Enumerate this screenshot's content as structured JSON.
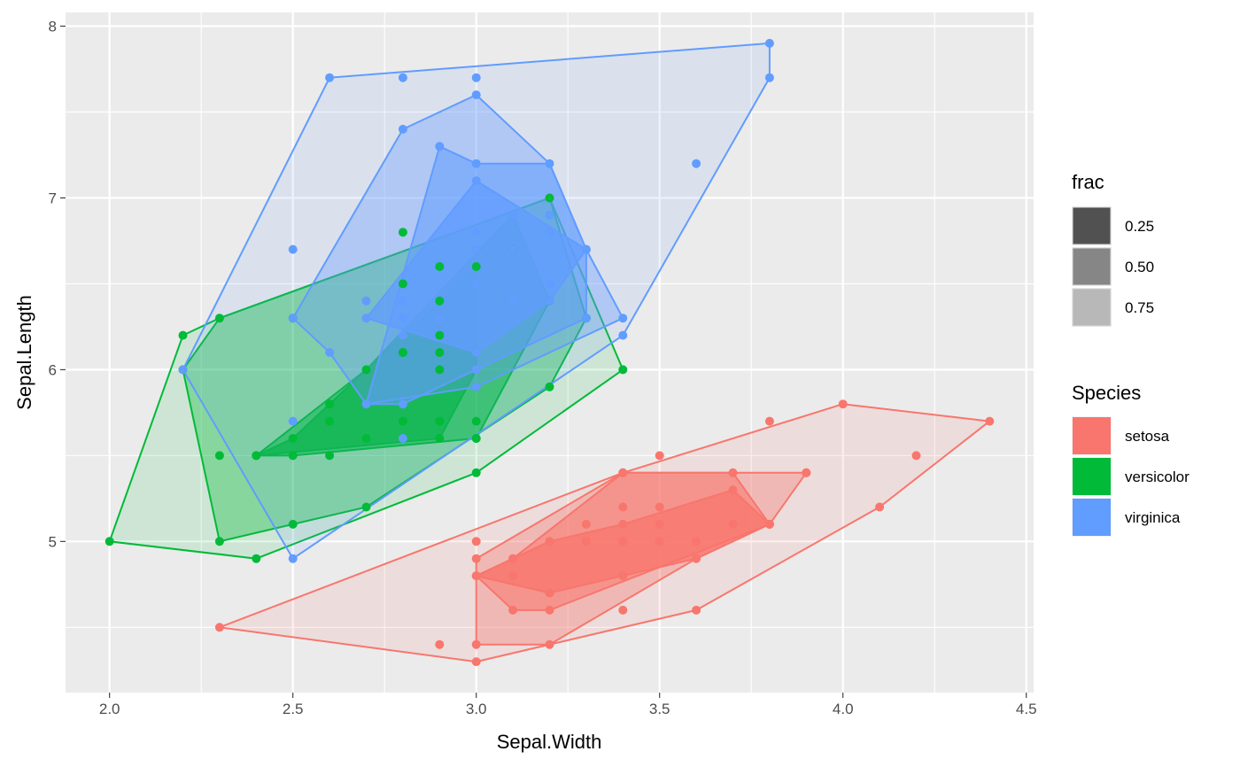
{
  "chart_data": {
    "type": "scatter",
    "overlay": "nested convex hulls (hull peeling) per species",
    "xlabel": "Sepal.Width",
    "ylabel": "Sepal.Length",
    "xlim": [
      1.88,
      4.52
    ],
    "ylim": [
      4.12,
      8.08
    ],
    "x_ticks": [
      2.0,
      2.5,
      3.0,
      3.5,
      4.0,
      4.5
    ],
    "x_tick_labels": [
      "2.0",
      "2.5",
      "3.0",
      "3.5",
      "4.0",
      "4.5"
    ],
    "y_ticks": [
      5,
      6,
      7,
      8
    ],
    "y_tick_labels": [
      "5",
      "6",
      "7",
      "8"
    ],
    "grid": true,
    "panel_background": "#EBEBEB",
    "legends": {
      "frac": {
        "title": "frac",
        "entries": [
          {
            "label": "0.25",
            "shade": "#515151"
          },
          {
            "label": "0.50",
            "shade": "#868686"
          },
          {
            "label": "0.75",
            "shade": "#b8b8b8"
          }
        ]
      },
      "species": {
        "title": "Species",
        "entries": [
          {
            "label": "setosa",
            "color": "#F8766D"
          },
          {
            "label": "versicolor",
            "color": "#00BA38"
          },
          {
            "label": "virginica",
            "color": "#619CFF"
          }
        ]
      },
      "placement": "right"
    },
    "series": [
      {
        "name": "setosa",
        "color": "#F8766D",
        "points": [
          [
            3.5,
            5.1
          ],
          [
            3.0,
            4.9
          ],
          [
            3.2,
            4.7
          ],
          [
            3.1,
            4.6
          ],
          [
            3.6,
            5.0
          ],
          [
            3.9,
            5.4
          ],
          [
            3.4,
            4.6
          ],
          [
            3.4,
            5.0
          ],
          [
            2.9,
            4.4
          ],
          [
            3.1,
            4.9
          ],
          [
            3.7,
            5.4
          ],
          [
            3.4,
            4.8
          ],
          [
            3.0,
            4.8
          ],
          [
            3.0,
            4.3
          ],
          [
            4.0,
            5.8
          ],
          [
            4.4,
            5.7
          ],
          [
            3.9,
            5.4
          ],
          [
            3.5,
            5.1
          ],
          [
            3.8,
            5.7
          ],
          [
            3.8,
            5.1
          ],
          [
            3.4,
            5.4
          ],
          [
            3.7,
            5.1
          ],
          [
            3.6,
            4.6
          ],
          [
            3.3,
            5.1
          ],
          [
            3.4,
            4.8
          ],
          [
            3.0,
            5.0
          ],
          [
            3.4,
            5.0
          ],
          [
            3.5,
            5.2
          ],
          [
            3.4,
            5.2
          ],
          [
            3.2,
            4.7
          ],
          [
            3.1,
            4.8
          ],
          [
            3.4,
            5.4
          ],
          [
            4.1,
            5.2
          ],
          [
            4.2,
            5.5
          ],
          [
            3.1,
            4.9
          ],
          [
            3.2,
            5.0
          ],
          [
            3.5,
            5.5
          ],
          [
            3.6,
            4.9
          ],
          [
            3.0,
            4.4
          ],
          [
            3.4,
            5.1
          ],
          [
            3.5,
            5.0
          ],
          [
            2.3,
            4.5
          ],
          [
            3.2,
            4.4
          ],
          [
            3.5,
            5.0
          ],
          [
            3.8,
            5.1
          ],
          [
            3.0,
            4.8
          ],
          [
            3.8,
            5.1
          ],
          [
            3.2,
            4.6
          ],
          [
            3.7,
            5.3
          ],
          [
            3.3,
            5.0
          ]
        ],
        "hulls": [
          [
            [
              2.3,
              4.5
            ],
            [
              3.0,
              4.3
            ],
            [
              3.6,
              4.6
            ],
            [
              4.1,
              5.2
            ],
            [
              4.4,
              5.7
            ],
            [
              4.0,
              5.8
            ],
            [
              3.4,
              5.4
            ]
          ],
          [
            [
              3.0,
              4.4
            ],
            [
              3.2,
              4.4
            ],
            [
              3.6,
              4.9
            ],
            [
              3.8,
              5.1
            ],
            [
              3.9,
              5.4
            ],
            [
              3.4,
              5.4
            ],
            [
              3.0,
              4.9
            ]
          ],
          [
            [
              3.0,
              4.8
            ],
            [
              3.1,
              4.6
            ],
            [
              3.2,
              4.6
            ],
            [
              3.8,
              5.1
            ],
            [
              3.7,
              5.4
            ],
            [
              3.4,
              5.4
            ],
            [
              3.1,
              4.9
            ]
          ],
          [
            [
              3.0,
              4.8
            ],
            [
              3.2,
              4.7
            ],
            [
              3.6,
              4.9
            ],
            [
              3.8,
              5.1
            ],
            [
              3.7,
              5.3
            ],
            [
              3.4,
              5.1
            ],
            [
              3.2,
              5.0
            ]
          ]
        ]
      },
      {
        "name": "versicolor",
        "color": "#00BA38",
        "points": [
          [
            3.2,
            7.0
          ],
          [
            3.2,
            6.4
          ],
          [
            3.1,
            6.9
          ],
          [
            2.3,
            5.5
          ],
          [
            2.8,
            6.5
          ],
          [
            2.8,
            5.7
          ],
          [
            3.3,
            6.3
          ],
          [
            2.4,
            4.9
          ],
          [
            2.9,
            6.6
          ],
          [
            2.7,
            5.2
          ],
          [
            2.0,
            5.0
          ],
          [
            3.0,
            5.9
          ],
          [
            2.2,
            6.0
          ],
          [
            2.9,
            6.1
          ],
          [
            2.9,
            5.6
          ],
          [
            3.1,
            6.7
          ],
          [
            3.0,
            5.6
          ],
          [
            2.7,
            5.8
          ],
          [
            2.2,
            6.2
          ],
          [
            2.5,
            5.6
          ],
          [
            3.2,
            5.9
          ],
          [
            2.8,
            6.1
          ],
          [
            2.5,
            6.3
          ],
          [
            2.8,
            6.1
          ],
          [
            2.9,
            6.4
          ],
          [
            3.0,
            6.6
          ],
          [
            2.8,
            6.8
          ],
          [
            3.0,
            6.7
          ],
          [
            2.9,
            6.0
          ],
          [
            2.6,
            5.7
          ],
          [
            2.4,
            5.5
          ],
          [
            2.4,
            5.5
          ],
          [
            2.7,
            5.8
          ],
          [
            2.7,
            6.0
          ],
          [
            3.0,
            5.4
          ],
          [
            3.4,
            6.0
          ],
          [
            3.1,
            6.7
          ],
          [
            2.3,
            6.3
          ],
          [
            3.0,
            5.6
          ],
          [
            2.5,
            5.5
          ],
          [
            2.6,
            5.5
          ],
          [
            3.0,
            6.1
          ],
          [
            2.6,
            5.8
          ],
          [
            2.3,
            5.0
          ],
          [
            2.7,
            5.6
          ],
          [
            3.0,
            5.7
          ],
          [
            2.9,
            5.7
          ],
          [
            2.9,
            6.2
          ],
          [
            2.5,
            5.1
          ],
          [
            2.8,
            5.7
          ]
        ],
        "hulls": [
          [
            [
              2.0,
              5.0
            ],
            [
              2.4,
              4.9
            ],
            [
              3.0,
              5.4
            ],
            [
              3.4,
              6.0
            ],
            [
              3.2,
              7.0
            ],
            [
              2.3,
              6.3
            ],
            [
              2.2,
              6.2
            ]
          ],
          [
            [
              2.2,
              6.0
            ],
            [
              2.3,
              5.0
            ],
            [
              2.5,
              5.1
            ],
            [
              2.7,
              5.2
            ],
            [
              3.2,
              5.9
            ],
            [
              3.3,
              6.3
            ],
            [
              3.2,
              7.0
            ],
            [
              2.3,
              6.3
            ]
          ],
          [
            [
              2.4,
              5.5
            ],
            [
              2.5,
              5.5
            ],
            [
              3.0,
              5.6
            ],
            [
              3.2,
              6.4
            ],
            [
              3.1,
              6.9
            ],
            [
              2.7,
              6.0
            ]
          ],
          [
            [
              2.4,
              5.5
            ],
            [
              2.9,
              5.6
            ],
            [
              3.0,
              6.0
            ],
            [
              3.0,
              6.6
            ],
            [
              2.5,
              5.6
            ]
          ]
        ]
      },
      {
        "name": "virginica",
        "color": "#619CFF",
        "points": [
          [
            3.3,
            6.3
          ],
          [
            2.7,
            5.8
          ],
          [
            3.0,
            7.1
          ],
          [
            2.9,
            6.3
          ],
          [
            3.0,
            6.5
          ],
          [
            3.0,
            7.6
          ],
          [
            2.5,
            4.9
          ],
          [
            2.9,
            7.3
          ],
          [
            2.5,
            6.7
          ],
          [
            3.6,
            7.2
          ],
          [
            3.2,
            6.5
          ],
          [
            2.7,
            6.4
          ],
          [
            3.0,
            6.8
          ],
          [
            2.5,
            5.7
          ],
          [
            2.8,
            5.8
          ],
          [
            3.2,
            6.4
          ],
          [
            3.0,
            6.5
          ],
          [
            3.8,
            7.7
          ],
          [
            2.6,
            7.7
          ],
          [
            2.2,
            6.0
          ],
          [
            3.2,
            6.9
          ],
          [
            2.8,
            5.6
          ],
          [
            2.8,
            7.7
          ],
          [
            2.7,
            6.3
          ],
          [
            3.3,
            6.7
          ],
          [
            3.2,
            7.2
          ],
          [
            2.8,
            6.2
          ],
          [
            3.0,
            6.1
          ],
          [
            2.8,
            6.4
          ],
          [
            3.0,
            7.2
          ],
          [
            2.8,
            7.4
          ],
          [
            3.8,
            7.9
          ],
          [
            2.8,
            6.4
          ],
          [
            2.8,
            6.3
          ],
          [
            2.6,
            6.1
          ],
          [
            3.0,
            7.7
          ],
          [
            3.4,
            6.3
          ],
          [
            3.1,
            6.4
          ],
          [
            3.0,
            6.0
          ],
          [
            3.1,
            6.9
          ],
          [
            3.1,
            6.7
          ],
          [
            3.1,
            6.9
          ],
          [
            2.7,
            5.8
          ],
          [
            3.2,
            6.8
          ],
          [
            3.3,
            6.7
          ],
          [
            3.0,
            6.7
          ],
          [
            2.5,
            6.3
          ],
          [
            3.0,
            6.5
          ],
          [
            3.4,
            6.2
          ],
          [
            3.0,
            5.9
          ]
        ],
        "hulls": [
          [
            [
              2.2,
              6.0
            ],
            [
              2.5,
              4.9
            ],
            [
              3.4,
              6.2
            ],
            [
              3.8,
              7.7
            ],
            [
              3.8,
              7.9
            ],
            [
              2.6,
              7.7
            ]
          ],
          [
            [
              2.5,
              6.3
            ],
            [
              2.6,
              6.1
            ],
            [
              2.7,
              5.8
            ],
            [
              3.0,
              5.9
            ],
            [
              3.4,
              6.3
            ],
            [
              3.3,
              6.7
            ],
            [
              3.2,
              7.2
            ],
            [
              3.0,
              7.6
            ],
            [
              2.8,
              7.4
            ]
          ],
          [
            [
              2.7,
              5.8
            ],
            [
              2.8,
              5.8
            ],
            [
              3.3,
              6.3
            ],
            [
              3.3,
              6.7
            ],
            [
              3.2,
              7.2
            ],
            [
              3.0,
              7.2
            ],
            [
              2.9,
              7.3
            ]
          ],
          [
            [
              2.7,
              6.3
            ],
            [
              3.0,
              6.1
            ],
            [
              3.2,
              6.4
            ],
            [
              3.3,
              6.7
            ],
            [
              3.0,
              7.1
            ]
          ]
        ]
      }
    ]
  }
}
